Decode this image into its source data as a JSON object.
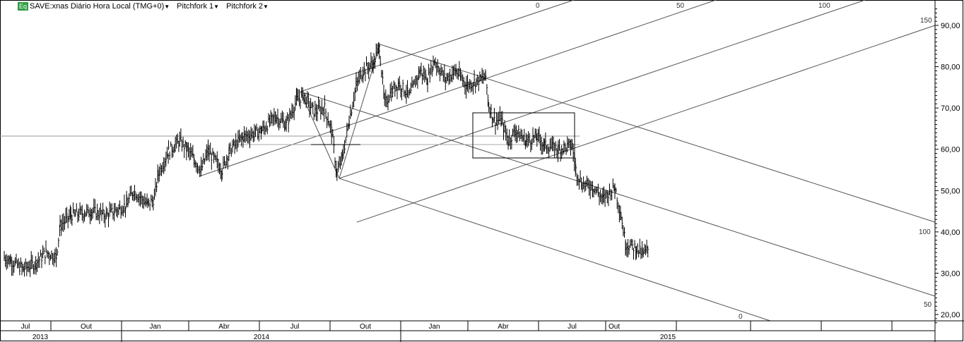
{
  "header": {
    "badge": "Eq",
    "symbol_label": "SAVE:xnas Diário Hora Local (TMG+0)",
    "pitchfork1_label": "Pitchfork 1",
    "pitchfork2_label": "Pitchfork 2",
    "dropdown_icon": "caret-down-icon"
  },
  "colors": {
    "badge": "#2f9e44",
    "price": "#000000",
    "drawing": "#555555",
    "hline": "#aaaaaa"
  },
  "fan_labels": [
    "0",
    "50",
    "100",
    "150",
    "100",
    "50",
    "0"
  ],
  "chart_data": {
    "type": "bar",
    "style": "ohlc-bars",
    "yaxis": {
      "ticks": [
        "90,00",
        "80,00",
        "70,00",
        "60,00",
        "50,00",
        "40,00",
        "30,00",
        "20,00"
      ],
      "range": [
        18,
        94
      ],
      "position": "right"
    },
    "xaxis": {
      "months": [
        "Jul",
        "Out",
        "Jan",
        "Abr",
        "Jul",
        "Out",
        "Jan",
        "Abr",
        "Jul",
        "Out",
        "",
        "",
        "",
        ""
      ],
      "years": [
        "2013",
        "2014",
        "2015"
      ]
    },
    "grid": false,
    "series": [
      {
        "points": [
          [
            "2013-07-27",
            33.8
          ],
          [
            "2013-08-05",
            33
          ],
          [
            "2013-08-23",
            31
          ],
          [
            "2013-09-10",
            32.5
          ],
          [
            "2013-09-24",
            35
          ],
          [
            "2013-10-08",
            34
          ],
          [
            "2013-10-13",
            41.5
          ],
          [
            "2013-10-27",
            44
          ],
          [
            "2013-11-23",
            45
          ],
          [
            "2013-12-12",
            44
          ],
          [
            "2014-01-08",
            46.6
          ],
          [
            "2014-01-17",
            50
          ],
          [
            "2014-02-05",
            46.6
          ],
          [
            "2014-02-14",
            48
          ],
          [
            "2014-02-19",
            54
          ],
          [
            "2014-03-05",
            59.5
          ],
          [
            "2014-03-20",
            62
          ],
          [
            "2014-03-30",
            60
          ],
          [
            "2014-04-08",
            57.5
          ],
          [
            "2014-04-17",
            55
          ],
          [
            "2014-04-26",
            59.5
          ],
          [
            "2014-05-14",
            55
          ],
          [
            "2014-05-23",
            59.5
          ],
          [
            "2014-06-10",
            63
          ],
          [
            "2014-07-04",
            64.5
          ],
          [
            "2014-07-22",
            68
          ],
          [
            "2014-08-05",
            66
          ],
          [
            "2014-08-19",
            72
          ],
          [
            "2014-08-28",
            73
          ],
          [
            "2014-09-10",
            69
          ],
          [
            "2014-09-24",
            70
          ],
          [
            "2014-10-03",
            64.5
          ],
          [
            "2014-10-10",
            54
          ],
          [
            "2014-10-17",
            58
          ],
          [
            "2014-10-26",
            67
          ],
          [
            "2014-11-04",
            75.5
          ],
          [
            "2014-11-13",
            79
          ],
          [
            "2014-11-27",
            81
          ],
          [
            "2014-12-04",
            85
          ],
          [
            "2014-12-11",
            71
          ],
          [
            "2014-12-20",
            74
          ],
          [
            "2014-12-29",
            76
          ],
          [
            "2015-01-13",
            73
          ],
          [
            "2015-01-27",
            79
          ],
          [
            "2015-02-06",
            77
          ],
          [
            "2015-02-15",
            81.5
          ],
          [
            "2015-03-02",
            77
          ],
          [
            "2015-03-16",
            79
          ],
          [
            "2015-03-30",
            75.5
          ],
          [
            "2015-04-12",
            76.5
          ],
          [
            "2015-04-24",
            77.5
          ],
          [
            "2015-04-28",
            70.5
          ],
          [
            "2015-05-05",
            67
          ],
          [
            "2015-05-14",
            67
          ],
          [
            "2015-05-23",
            62
          ],
          [
            "2015-06-01",
            64.5
          ],
          [
            "2015-06-15",
            62
          ],
          [
            "2015-06-29",
            63
          ],
          [
            "2015-07-09",
            61
          ],
          [
            "2015-07-28",
            60
          ],
          [
            "2015-08-16",
            61
          ],
          [
            "2015-08-21",
            55
          ],
          [
            "2015-08-30",
            51.5
          ],
          [
            "2015-09-13",
            51
          ],
          [
            "2015-09-27",
            48
          ],
          [
            "2015-10-13",
            51
          ],
          [
            "2015-10-21",
            44
          ],
          [
            "2015-10-27",
            37
          ],
          [
            "2015-11-10",
            36
          ],
          [
            "2015-11-19",
            34.5
          ],
          [
            "2015-11-26",
            36
          ]
        ]
      }
    ]
  }
}
